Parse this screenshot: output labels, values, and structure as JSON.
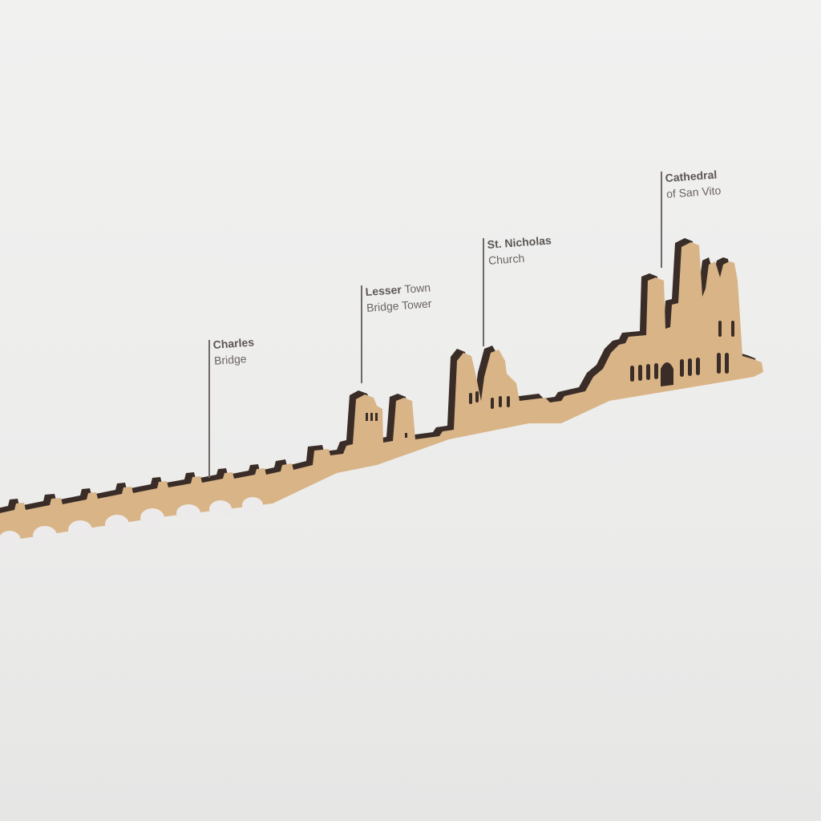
{
  "colors": {
    "wood": "#d9b487",
    "wood_edge": "#3a2c26",
    "background": "#efefee",
    "label_text": "#6b6462"
  },
  "landmarks": [
    {
      "bold": "Charles",
      "regular": "",
      "line2": "Bridge"
    },
    {
      "bold": "Lesser",
      "regular": " Town",
      "line2": "Bridge Tower"
    },
    {
      "bold": "St. Nicholas",
      "regular": "",
      "line2": "Church"
    },
    {
      "bold": "Cathedral",
      "regular": "",
      "line2": "of San Vito"
    }
  ]
}
